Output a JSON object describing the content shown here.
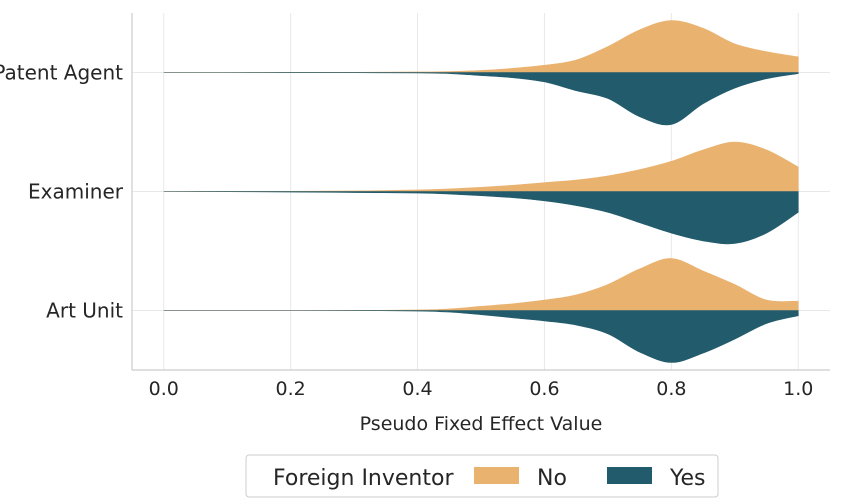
{
  "chart_data": {
    "type": "violin",
    "orientation": "horizontal",
    "split": true,
    "xlabel": "Pseudo Fixed Effect Value",
    "ylabel": "",
    "xlim": [
      -0.05,
      1.05
    ],
    "xticks": [
      "0.0",
      "0.2",
      "0.4",
      "0.6",
      "0.8",
      "1.0"
    ],
    "categories": [
      "Patent Agent",
      "Examiner",
      "Art Unit"
    ],
    "grid": true,
    "legend": {
      "title": "Foreign Inventor",
      "placement": "bottom-center",
      "entries": [
        "No",
        "Yes"
      ]
    },
    "series": [
      {
        "name": "No",
        "color": "#EAB26F",
        "density_x": [
          0.0,
          0.1,
          0.2,
          0.3,
          0.4,
          0.45,
          0.5,
          0.55,
          0.6,
          0.65,
          0.7,
          0.75,
          0.8,
          0.85,
          0.9,
          0.95,
          1.0
        ],
        "density": [
          [
            0.0,
            0.0,
            0.002,
            0.004,
            0.01,
            0.018,
            0.04,
            0.08,
            0.14,
            0.24,
            0.5,
            0.82,
            1.0,
            0.85,
            0.55,
            0.4,
            0.3
          ],
          [
            0.0,
            0.002,
            0.005,
            0.01,
            0.03,
            0.05,
            0.08,
            0.12,
            0.17,
            0.22,
            0.3,
            0.42,
            0.58,
            0.8,
            0.95,
            0.8,
            0.47
          ],
          [
            0.0,
            0.0,
            0.0,
            0.002,
            0.01,
            0.03,
            0.08,
            0.13,
            0.2,
            0.3,
            0.5,
            0.8,
            1.0,
            0.76,
            0.5,
            0.2,
            0.18
          ]
        ]
      },
      {
        "name": "Yes",
        "color": "#225B6C",
        "density_x": [
          0.0,
          0.1,
          0.2,
          0.3,
          0.4,
          0.45,
          0.5,
          0.55,
          0.6,
          0.65,
          0.7,
          0.75,
          0.8,
          0.85,
          0.9,
          0.95,
          1.0
        ],
        "density": [
          [
            0.0,
            0.0,
            0.003,
            0.005,
            0.008,
            0.02,
            0.06,
            0.1,
            0.18,
            0.35,
            0.5,
            0.85,
            1.0,
            0.6,
            0.3,
            0.12,
            0.02
          ],
          [
            0.0,
            0.003,
            0.01,
            0.02,
            0.03,
            0.05,
            0.08,
            0.12,
            0.18,
            0.27,
            0.4,
            0.6,
            0.8,
            0.95,
            1.0,
            0.8,
            0.4
          ],
          [
            0.0,
            0.0,
            0.0,
            0.002,
            0.01,
            0.03,
            0.08,
            0.14,
            0.2,
            0.28,
            0.45,
            0.8,
            1.0,
            0.82,
            0.55,
            0.25,
            0.1
          ]
        ]
      }
    ]
  }
}
